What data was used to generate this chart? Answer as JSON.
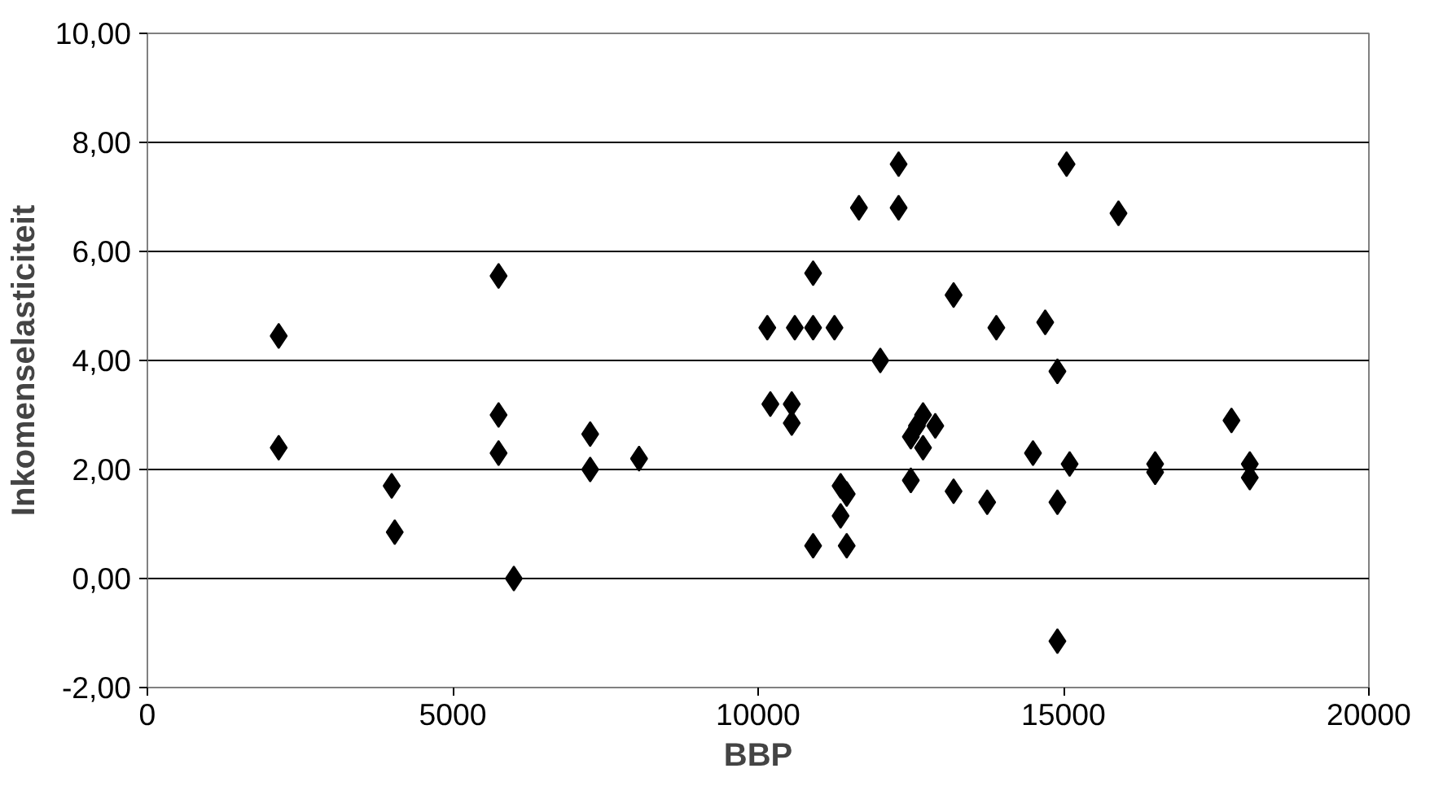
{
  "chart_data": {
    "type": "scatter",
    "xlabel": "BBP",
    "ylabel": "Inkomenselasticiteit",
    "marker": "diamond",
    "grid": "y",
    "series": [
      {
        "color": "#000000",
        "x": [
          2150,
          2150,
          4000,
          4050,
          5750,
          5750,
          5750,
          6000,
          7250,
          7250,
          8050,
          10150,
          10200,
          10550,
          10550,
          10600,
          10900,
          10900,
          10900,
          11250,
          11350,
          11350,
          11450,
          11450,
          11650,
          12000,
          12300,
          12300,
          12500,
          12500,
          12600,
          12700,
          12700,
          12900,
          13200,
          13200,
          13750,
          13900,
          14500,
          14700,
          14900,
          14900,
          14900,
          15050,
          15100,
          15900,
          16500,
          16500,
          17750,
          18050,
          18050
        ],
        "values": [
          4.45,
          2.4,
          1.7,
          0.85,
          5.55,
          3.0,
          2.3,
          0.0,
          2.65,
          2.0,
          2.2,
          4.6,
          3.2,
          3.2,
          2.85,
          4.6,
          5.6,
          4.6,
          0.6,
          4.6,
          1.7,
          1.15,
          0.6,
          1.55,
          6.8,
          4.0,
          7.6,
          6.8,
          1.8,
          2.6,
          2.8,
          3.0,
          2.4,
          2.8,
          5.2,
          1.6,
          1.4,
          4.6,
          2.3,
          4.7,
          3.8,
          1.4,
          -1.15,
          7.6,
          2.1,
          6.7,
          2.1,
          1.95,
          2.9,
          2.1,
          1.85
        ]
      }
    ],
    "xlim": [
      0,
      20000
    ],
    "xticks": [
      0,
      5000,
      10000,
      15000,
      20000
    ],
    "ylim": [
      -2,
      10
    ],
    "yticks": [
      {
        "value": -2,
        "label": "-2,00"
      },
      {
        "value": 0,
        "label": "0,00"
      },
      {
        "value": 2,
        "label": "2,00"
      },
      {
        "value": 4,
        "label": "4,00"
      },
      {
        "value": 6,
        "label": "6,00"
      },
      {
        "value": 8,
        "label": "8,00"
      },
      {
        "value": 10,
        "label": "10,00"
      }
    ]
  }
}
